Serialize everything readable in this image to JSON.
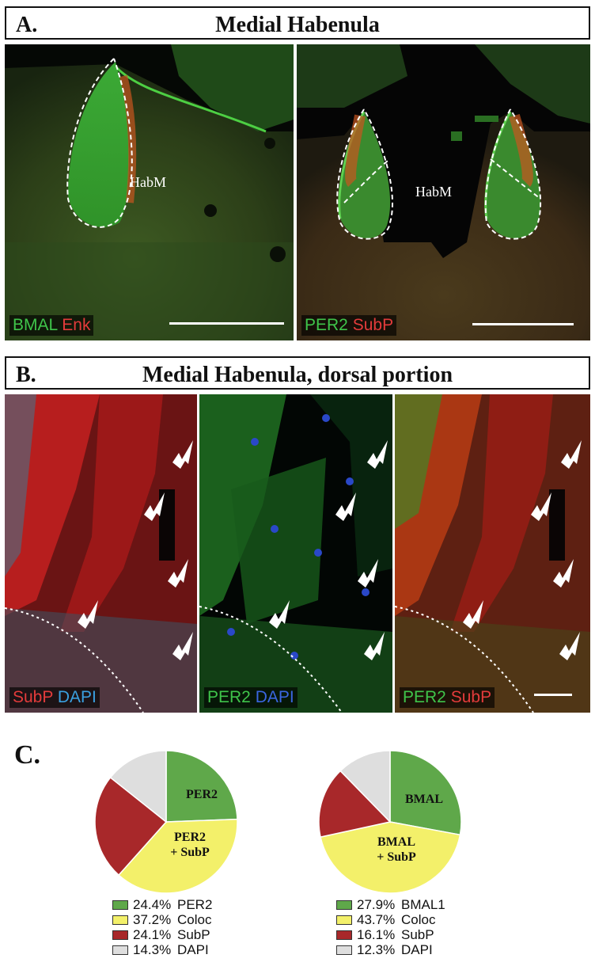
{
  "panelA": {
    "letter": "A.",
    "title": "Medial Habenula",
    "left": {
      "ch1": "BMAL",
      "ch2": "Enk",
      "region": "HabM"
    },
    "right": {
      "ch1": "PER2",
      "ch2": "SubP",
      "region": "HabM"
    }
  },
  "panelB": {
    "letter": "B.",
    "title": "Medial Habenula, dorsal portion",
    "images": [
      {
        "ch1": "SubP",
        "ch2": "DAPI"
      },
      {
        "ch1": "PER2",
        "ch2": "DAPI"
      },
      {
        "ch1": "PER2",
        "ch2": "SubP"
      }
    ]
  },
  "panelC": {
    "letter": "C.",
    "colors": {
      "green": "#5fa84a",
      "yellow": "#f3f06a",
      "red": "#a8282a",
      "gray": "#dedede"
    }
  },
  "chart_data": [
    {
      "type": "pie",
      "slices": [
        {
          "label": "PER2",
          "value": 24.4,
          "color": "#5fa84a"
        },
        {
          "label": "Coloc",
          "value": 37.2,
          "color": "#f3f06a"
        },
        {
          "label": "SubP",
          "value": 24.1,
          "color": "#a8282a"
        },
        {
          "label": "DAPI",
          "value": 14.3,
          "color": "#dedede"
        }
      ],
      "inner_labels": [
        "PER2",
        "PER2",
        "+ SubP"
      ],
      "legend": [
        {
          "pct": "24.4%",
          "name": "PER2"
        },
        {
          "pct": "37.2%",
          "name": "Coloc"
        },
        {
          "pct": "24.1%",
          "name": "SubP"
        },
        {
          "pct": "14.3%",
          "name": "DAPI"
        }
      ]
    },
    {
      "type": "pie",
      "slices": [
        {
          "label": "BMAL1",
          "value": 27.9,
          "color": "#5fa84a"
        },
        {
          "label": "Coloc",
          "value": 43.7,
          "color": "#f3f06a"
        },
        {
          "label": "SubP",
          "value": 16.1,
          "color": "#a8282a"
        },
        {
          "label": "DAPI",
          "value": 12.3,
          "color": "#dedede"
        }
      ],
      "inner_labels": [
        "BMAL",
        "BMAL",
        "+ SubP"
      ],
      "legend": [
        {
          "pct": "27.9%",
          "name": "BMAL1"
        },
        {
          "pct": "43.7%",
          "name": "Coloc"
        },
        {
          "pct": "16.1%",
          "name": "SubP"
        },
        {
          "pct": "12.3%",
          "name": "DAPI"
        }
      ]
    }
  ]
}
